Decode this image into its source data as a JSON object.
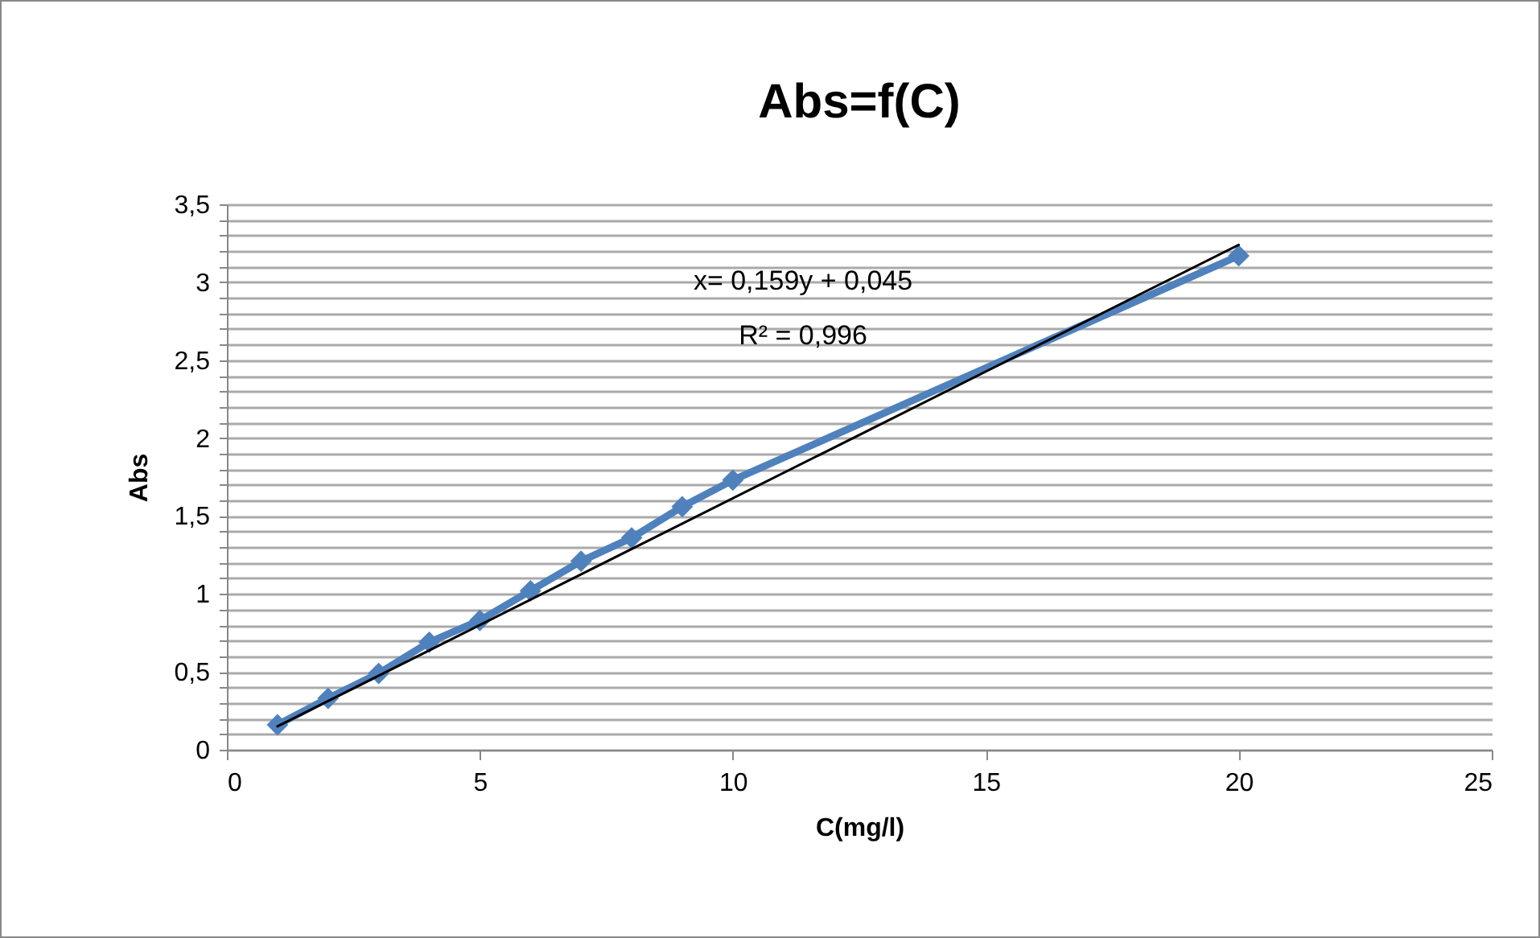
{
  "chart_data": {
    "type": "line",
    "title": "Abs=f(C)",
    "xlabel": "C(mg/l)",
    "ylabel": "Abs",
    "x": [
      1,
      2,
      3,
      4,
      5,
      6,
      7,
      8,
      9,
      10,
      20
    ],
    "series": [
      {
        "color": "#4f81bd",
        "marker": "diamond",
        "values": [
          0.16,
          0.33,
          0.49,
          0.69,
          0.83,
          1.02,
          1.21,
          1.36,
          1.56,
          1.73,
          3.17
        ]
      },
      {
        "color": "#000000",
        "marker": "none",
        "x": [
          1,
          20
        ],
        "values": [
          0.15,
          3.24
        ]
      }
    ],
    "annotations": [
      "x= 0,159y + 0,045",
      "R² = 0,996"
    ],
    "xlim": [
      0,
      25
    ],
    "xticks": [
      0,
      5,
      10,
      15,
      20,
      25
    ],
    "ylim": [
      0,
      3.5
    ],
    "yticks": [
      {
        "value": 0,
        "label": "0"
      },
      {
        "value": 0.1,
        "label": null
      },
      {
        "value": 0.2,
        "label": null
      },
      {
        "value": 0.3,
        "label": null
      },
      {
        "value": 0.4,
        "label": null
      },
      {
        "value": 0.5,
        "label": "0,5"
      },
      {
        "value": 0.6,
        "label": null
      },
      {
        "value": 0.7,
        "label": null
      },
      {
        "value": 0.8,
        "label": null
      },
      {
        "value": 0.9,
        "label": null
      },
      {
        "value": 1,
        "label": "1"
      },
      {
        "value": 1.1,
        "label": null
      },
      {
        "value": 1.2,
        "label": null
      },
      {
        "value": 1.3,
        "label": null
      },
      {
        "value": 1.4,
        "label": null
      },
      {
        "value": 1.5,
        "label": "1,5"
      },
      {
        "value": 1.6,
        "label": null
      },
      {
        "value": 1.7,
        "label": null
      },
      {
        "value": 1.8,
        "label": null
      },
      {
        "value": 1.9,
        "label": null
      },
      {
        "value": 2,
        "label": "2"
      },
      {
        "value": 2.1,
        "label": null
      },
      {
        "value": 2.2,
        "label": null
      },
      {
        "value": 2.3,
        "label": null
      },
      {
        "value": 2.4,
        "label": null
      },
      {
        "value": 2.5,
        "label": "2,5"
      },
      {
        "value": 2.6,
        "label": null
      },
      {
        "value": 2.7,
        "label": null
      },
      {
        "value": 2.8,
        "label": null
      },
      {
        "value": 2.9,
        "label": null
      },
      {
        "value": 3,
        "label": "3"
      },
      {
        "value": 3.1,
        "label": null
      },
      {
        "value": 3.2,
        "label": null
      },
      {
        "value": 3.3,
        "label": null
      },
      {
        "value": 3.4,
        "label": null
      },
      {
        "value": 3.5,
        "label": "3,5"
      }
    ],
    "grid": "y"
  }
}
